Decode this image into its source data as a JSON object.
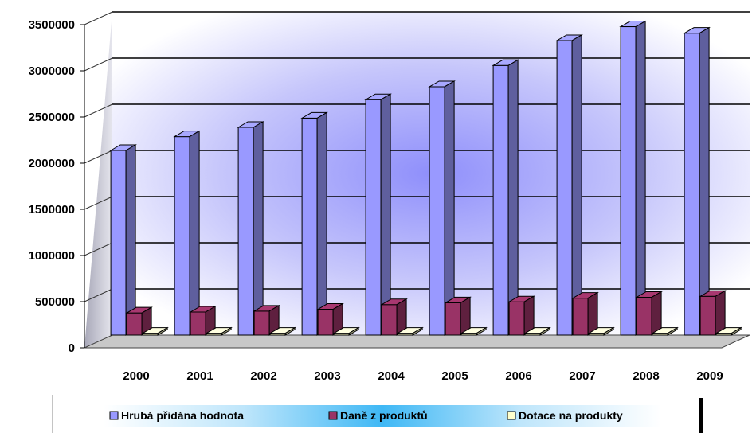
{
  "chart_data": {
    "type": "bar",
    "categories": [
      "2000",
      "2001",
      "2002",
      "2003",
      "2004",
      "2005",
      "2006",
      "2007",
      "2008",
      "2009"
    ],
    "series": [
      {
        "name": "Hrubá přidána hodnota",
        "color": "#9999ff",
        "values": [
          2000000,
          2150000,
          2250000,
          2350000,
          2550000,
          2690000,
          2920000,
          3190000,
          3340000,
          3270000
        ]
      },
      {
        "name": "Daně z produktů",
        "color": "#993366",
        "values": [
          240000,
          250000,
          260000,
          280000,
          330000,
          350000,
          360000,
          400000,
          410000,
          420000
        ]
      },
      {
        "name": "Dotace na produkty",
        "color": "#ffffcc",
        "values": [
          20000,
          20000,
          20000,
          20000,
          20000,
          20000,
          20000,
          20000,
          20000,
          20000
        ]
      }
    ],
    "yticks": [
      "0",
      "500000",
      "1000000",
      "1500000",
      "2000000",
      "2500000",
      "3000000",
      "3500000"
    ],
    "ylim": [
      0,
      3500000
    ],
    "grid": true,
    "legend_position": "bottom",
    "style": "3d-clustered-columns"
  }
}
